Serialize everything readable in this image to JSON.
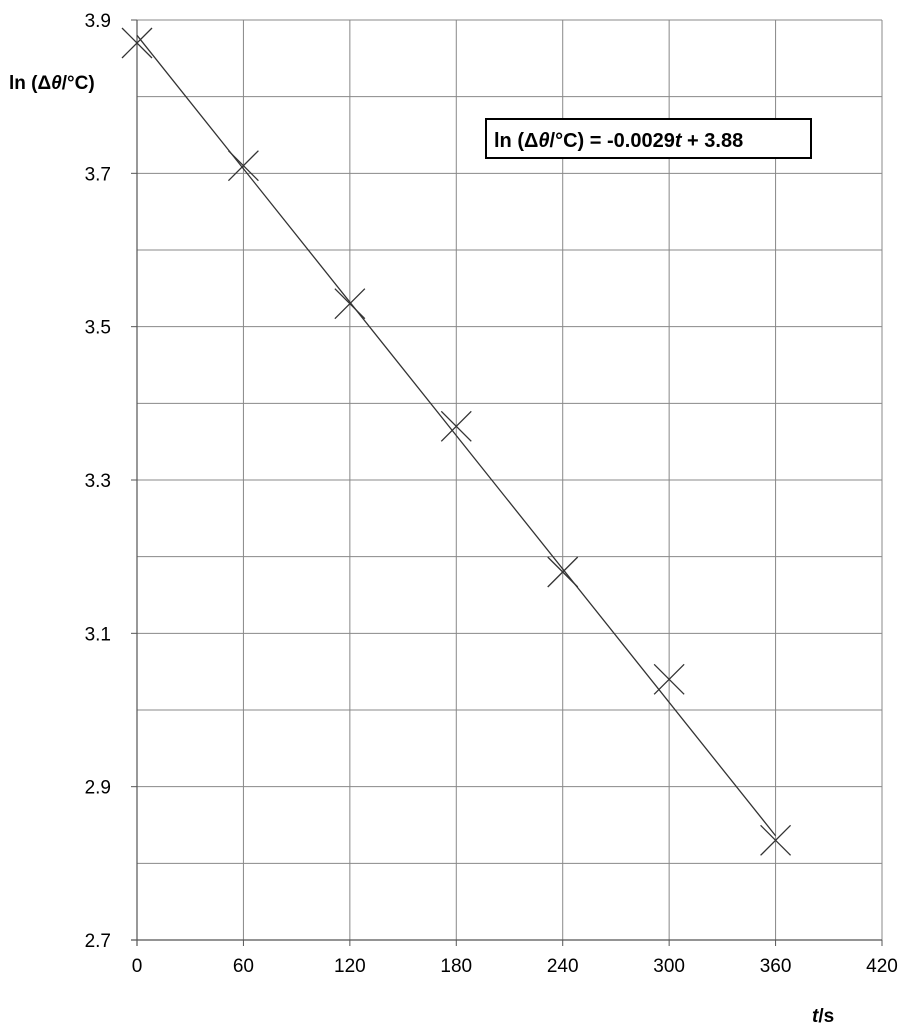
{
  "chart_data": {
    "type": "scatter",
    "x_axis": {
      "label_var": "t",
      "label_unit": "/s",
      "range": [
        0,
        420
      ],
      "ticks": [
        0,
        60,
        120,
        180,
        240,
        300,
        360,
        420
      ],
      "tick_labels": [
        "0",
        "60",
        "120",
        "180",
        "240",
        "300",
        "360",
        "420"
      ]
    },
    "y_axis": {
      "label_prefix": "ln (Δ",
      "label_var": "θ",
      "label_suffix": "/°C)",
      "range": [
        2.7,
        3.9
      ],
      "ticks": [
        2.7,
        2.9,
        3.1,
        3.3,
        3.5,
        3.7,
        3.9
      ],
      "tick_labels": [
        "2.7",
        "2.9",
        "3.1",
        "3.3",
        "3.5",
        "3.7",
        "3.9"
      ],
      "minor_gridlines": [
        2.8,
        3.0,
        3.2,
        3.4,
        3.6,
        3.8
      ]
    },
    "series": [
      {
        "marker": "x",
        "x": [
          0,
          60,
          120,
          180,
          240,
          300,
          360
        ],
        "y": [
          3.87,
          3.71,
          3.53,
          3.37,
          3.18,
          3.04,
          2.83
        ]
      }
    ],
    "trendline": {
      "slope": -0.0029,
      "intercept": 3.88,
      "x_range": [
        0,
        360
      ]
    },
    "equation": {
      "prefix": "ln (Δ",
      "theta": "θ",
      "middle": "/°C) = -0.0029",
      "var": "t",
      "suffix": " + 3.88"
    },
    "grid": true,
    "colors": {
      "grid": "#888888",
      "line": "#333333",
      "marker": "#333333",
      "axis": "#555555"
    }
  }
}
